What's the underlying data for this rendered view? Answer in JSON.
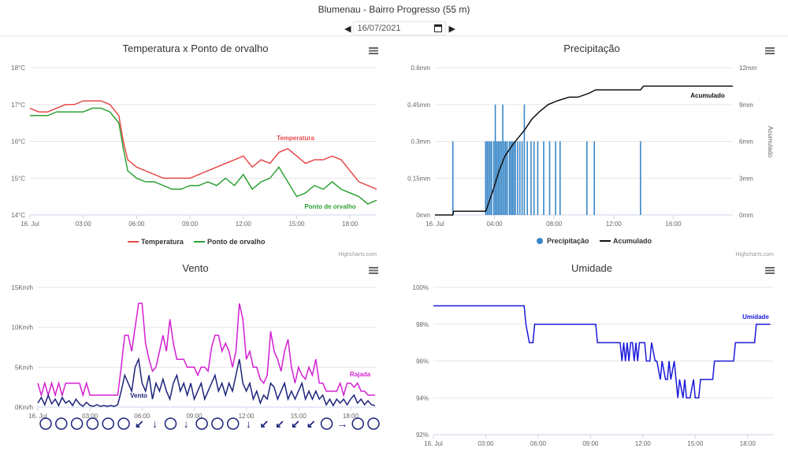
{
  "header": {
    "title": "Blumenau - Bairro Progresso (55 m)",
    "date": "16/07/2021"
  },
  "credits": "Highcharts.com",
  "charts": [
    {
      "type": "line",
      "title": "Temperatura x Ponto de orvalho",
      "xticks": [
        "16. Jul",
        "03:00",
        "06:00",
        "09:00",
        "12:00",
        "15:00",
        "18:00"
      ],
      "yticks": [
        "14°C",
        "15°C",
        "16°C",
        "17°C",
        "18°C"
      ],
      "ylim": [
        14,
        18
      ],
      "xlim": [
        0,
        19.5
      ],
      "legend": [
        "Temperatura",
        "Ponto de orvalho"
      ],
      "series": [
        {
          "name": "Temperatura",
          "color": "#e84a4a",
          "label": "Temperatura",
          "x": [
            0,
            0.5,
            1,
            1.5,
            2,
            2.5,
            3,
            3.5,
            4,
            4.5,
            5,
            5.25,
            5.5,
            6,
            6.5,
            7,
            7.5,
            8,
            8.5,
            9,
            9.5,
            10,
            10.5,
            11,
            11.5,
            12,
            12.5,
            13,
            13.5,
            14,
            14.5,
            15,
            15.5,
            16,
            16.5,
            17,
            17.5,
            18,
            18.5,
            19,
            19.5
          ],
          "y": [
            16.9,
            16.8,
            16.8,
            16.9,
            17.0,
            17.0,
            17.1,
            17.1,
            17.1,
            17.0,
            16.7,
            16.0,
            15.5,
            15.3,
            15.2,
            15.1,
            15.0,
            15.0,
            15.0,
            15.0,
            15.1,
            15.2,
            15.3,
            15.4,
            15.5,
            15.6,
            15.3,
            15.5,
            15.4,
            15.7,
            15.8,
            15.6,
            15.4,
            15.5,
            15.5,
            15.6,
            15.5,
            15.2,
            14.9,
            14.8,
            14.7
          ]
        },
        {
          "name": "Ponto de orvalho",
          "color": "#2fa236",
          "label": "Ponto de orvalho",
          "x": [
            0,
            0.5,
            1,
            1.5,
            2,
            2.5,
            3,
            3.5,
            4,
            4.5,
            5,
            5.25,
            5.5,
            6,
            6.5,
            7,
            7.5,
            8,
            8.5,
            9,
            9.5,
            10,
            10.5,
            11,
            11.5,
            12,
            12.5,
            13,
            13.5,
            14,
            14.5,
            15,
            15.5,
            16,
            16.5,
            17,
            17.5,
            18,
            18.5,
            19,
            19.5
          ],
          "y": [
            16.7,
            16.7,
            16.7,
            16.8,
            16.8,
            16.8,
            16.8,
            16.9,
            16.9,
            16.8,
            16.5,
            15.8,
            15.2,
            15.0,
            14.9,
            14.9,
            14.8,
            14.7,
            14.7,
            14.8,
            14.8,
            14.9,
            14.8,
            15.0,
            14.8,
            15.1,
            14.7,
            14.9,
            15.0,
            15.3,
            14.9,
            14.5,
            14.6,
            14.8,
            14.7,
            14.9,
            14.7,
            14.6,
            14.5,
            14.3,
            14.4
          ]
        }
      ]
    },
    {
      "type": "bar+line",
      "title": "Precipitação",
      "xticks": [
        "16. Jul",
        "04:00",
        "08:00",
        "12:00",
        "16:00"
      ],
      "yticks": [
        "0mm",
        "0.15mm",
        "0.3mm",
        "0.45mm",
        "0.6mm"
      ],
      "y2ticks": [
        "0mm",
        "3mm",
        "6mm",
        "9mm",
        "12mm"
      ],
      "y2label": "Acumulado",
      "ylim": [
        0,
        0.6
      ],
      "y2lim": [
        0,
        12
      ],
      "xlim": [
        0,
        20
      ],
      "legend": [
        "Precipitação",
        "Acumulado"
      ],
      "bars": {
        "name": "Precipitação",
        "color": "#3a87c8",
        "x": [
          1.2,
          3.4,
          3.5,
          3.6,
          3.7,
          3.8,
          3.95,
          4.05,
          4.15,
          4.25,
          4.35,
          4.45,
          4.55,
          4.65,
          4.75,
          4.85,
          5.0,
          5.1,
          5.2,
          5.3,
          5.4,
          5.55,
          5.7,
          5.85,
          6.0,
          6.2,
          6.45,
          6.65,
          6.9,
          7.3,
          7.7,
          8.1,
          8.4,
          10.2,
          10.7,
          13.8
        ],
        "y": [
          0.3,
          0.3,
          0.3,
          0.3,
          0.3,
          0.3,
          0.3,
          0.45,
          0.3,
          0.3,
          0.3,
          0.3,
          0.45,
          0.3,
          0.3,
          0.3,
          0.3,
          0.3,
          0.3,
          0.3,
          0.3,
          0.3,
          0.3,
          0.3,
          0.45,
          0.3,
          0.3,
          0.3,
          0.3,
          0.3,
          0.3,
          0.3,
          0.3,
          0.3,
          0.3,
          0.3
        ]
      },
      "line": {
        "name": "Acumulado",
        "color": "#111",
        "label": "Acumulado",
        "x": [
          0,
          1.2,
          1.25,
          3.4,
          3.5,
          3.9,
          4.3,
          4.7,
          5.2,
          5.6,
          6.0,
          6.5,
          7.0,
          7.6,
          8.2,
          9.0,
          9.6,
          10.3,
          10.8,
          11.5,
          13.0,
          13.8,
          14.0,
          17.0,
          20.0
        ],
        "y": [
          0,
          0,
          0.3,
          0.3,
          0.6,
          2.0,
          3.6,
          4.8,
          5.7,
          6.3,
          6.9,
          7.8,
          8.4,
          9.0,
          9.3,
          9.6,
          9.6,
          9.9,
          10.2,
          10.2,
          10.2,
          10.2,
          10.5,
          10.5,
          10.5
        ]
      }
    },
    {
      "type": "line",
      "title": "Vento",
      "xticks": [
        "16. Jul",
        "03:00",
        "06:00",
        "09:00",
        "12:00",
        "15:00",
        "18:00"
      ],
      "yticks": [
        "0Km/h",
        "5Km/h",
        "10Km/h",
        "15Km/h"
      ],
      "ylim": [
        0,
        15
      ],
      "xlim": [
        0,
        19.5
      ],
      "series": [
        {
          "name": "Rajada",
          "color": "#d21fd2",
          "label": "Rajada",
          "x": [
            0,
            0.2,
            0.4,
            0.6,
            0.8,
            1.0,
            1.2,
            1.4,
            1.6,
            1.8,
            2.0,
            2.2,
            2.4,
            2.6,
            2.8,
            3.0,
            3.2,
            3.4,
            3.6,
            3.8,
            4.0,
            4.2,
            4.4,
            4.6,
            4.8,
            5.0,
            5.2,
            5.4,
            5.6,
            5.8,
            6.0,
            6.2,
            6.4,
            6.6,
            6.8,
            7.0,
            7.2,
            7.4,
            7.6,
            7.8,
            8.0,
            8.2,
            8.4,
            8.6,
            8.8,
            9.0,
            9.2,
            9.4,
            9.6,
            9.8,
            10.0,
            10.2,
            10.4,
            10.6,
            10.8,
            11.0,
            11.2,
            11.4,
            11.6,
            11.8,
            12.0,
            12.2,
            12.4,
            12.6,
            12.8,
            13.0,
            13.2,
            13.4,
            13.6,
            13.8,
            14.0,
            14.2,
            14.4,
            14.6,
            14.8,
            15.0,
            15.2,
            15.4,
            15.6,
            15.8,
            16.0,
            16.2,
            16.4,
            16.6,
            16.8,
            17.0,
            17.2,
            17.4,
            17.6,
            17.8,
            18.0,
            18.2,
            18.4,
            18.6,
            18.8,
            19.0,
            19.2,
            19.4
          ],
          "y": [
            3,
            1.5,
            3,
            1.5,
            3,
            1.5,
            3,
            1.5,
            3,
            3,
            3,
            3,
            3,
            1.5,
            3,
            1.5,
            1.5,
            1.5,
            1.5,
            1.5,
            1.5,
            1.5,
            1.5,
            1.5,
            5,
            9,
            9,
            7,
            10,
            13,
            13,
            8,
            6,
            4.5,
            5,
            7,
            9,
            7,
            11,
            8,
            6,
            6,
            6,
            5,
            5,
            5,
            4,
            5,
            5,
            4.5,
            7.5,
            9,
            9,
            7,
            8,
            7,
            5,
            7,
            13,
            11,
            6,
            7,
            5,
            5,
            3.5,
            3,
            4,
            9.5,
            7,
            6,
            4.5,
            7,
            8.5,
            5,
            3,
            5,
            4,
            3.5,
            5,
            4,
            6,
            3,
            3,
            2,
            2,
            2,
            2,
            3,
            1.5,
            3,
            3,
            2.5,
            3,
            2,
            2,
            1.5,
            1.5,
            1.5
          ]
        },
        {
          "name": "Vento",
          "color": "#1c237a",
          "label": "Vento",
          "x": [
            0,
            0.2,
            0.4,
            0.6,
            0.8,
            1.0,
            1.2,
            1.4,
            1.6,
            1.8,
            2.0,
            2.2,
            2.4,
            2.6,
            2.8,
            3.0,
            3.2,
            3.4,
            3.6,
            3.8,
            4.0,
            4.2,
            4.4,
            4.6,
            4.8,
            5.0,
            5.2,
            5.4,
            5.6,
            5.8,
            6.0,
            6.2,
            6.4,
            6.6,
            6.8,
            7.0,
            7.2,
            7.4,
            7.6,
            7.8,
            8.0,
            8.2,
            8.4,
            8.6,
            8.8,
            9.0,
            9.2,
            9.4,
            9.6,
            9.8,
            10.0,
            10.2,
            10.4,
            10.6,
            10.8,
            11.0,
            11.2,
            11.4,
            11.6,
            11.8,
            12.0,
            12.2,
            12.4,
            12.6,
            12.8,
            13.0,
            13.2,
            13.4,
            13.6,
            13.8,
            14.0,
            14.2,
            14.4,
            14.6,
            14.8,
            15.0,
            15.2,
            15.4,
            15.6,
            15.8,
            16.0,
            16.2,
            16.4,
            16.6,
            16.8,
            17.0,
            17.2,
            17.4,
            17.6,
            17.8,
            18.0,
            18.2,
            18.4,
            18.6,
            18.8,
            19.0,
            19.2,
            19.4
          ],
          "y": [
            0.5,
            1.2,
            0.3,
            1.5,
            0.4,
            1,
            0.2,
            1.2,
            0.5,
            0.8,
            0.2,
            1,
            0.4,
            0.1,
            0.6,
            0.2,
            0.1,
            0.3,
            0.1,
            0.2,
            0.1,
            0.2,
            0.1,
            0.3,
            2,
            4,
            3,
            2,
            5,
            6,
            3,
            2,
            4,
            1,
            3,
            2,
            3.5,
            2,
            1,
            3,
            4,
            2,
            3,
            1.5,
            3,
            1,
            2,
            3,
            1,
            2,
            3,
            4,
            2,
            3,
            1.5,
            3,
            2,
            4,
            6,
            3,
            2,
            3,
            1,
            2,
            0.5,
            1.5,
            1,
            3,
            2.5,
            1,
            2,
            3,
            1,
            2,
            1,
            2,
            3,
            1,
            2,
            1,
            2,
            1,
            1.5,
            0.3,
            1,
            0.2,
            1,
            0.5,
            1,
            0.3,
            1,
            1.5,
            0.5,
            1,
            0.3,
            0.8,
            0.3,
            0.2
          ]
        }
      ],
      "directions": [
        "calm",
        "calm",
        "calm",
        "calm",
        "calm",
        "calm",
        "↙",
        "↓",
        "calm",
        "↓",
        "calm",
        "calm",
        "calm",
        "↓",
        "↙",
        "↙",
        "↙",
        "↙",
        "calm",
        "→",
        "calm",
        "calm"
      ]
    },
    {
      "type": "line",
      "title": "Umidade",
      "xticks": [
        "16. Jul",
        "03:00",
        "06:00",
        "09:00",
        "12:00",
        "15:00",
        "18:00"
      ],
      "yticks": [
        "92%",
        "94%",
        "96%",
        "98%",
        "100%"
      ],
      "ylim": [
        92,
        100
      ],
      "xlim": [
        0,
        19.5
      ],
      "series": [
        {
          "name": "Umidade",
          "color": "#1a1adb",
          "label": "Umidade",
          "x": [
            0,
            5.2,
            5.3,
            5.5,
            5.6,
            5.7,
            5.8,
            6.0,
            9.3,
            9.4,
            9.5,
            10.7,
            10.8,
            10.9,
            11.0,
            11.1,
            11.2,
            11.3,
            11.4,
            11.5,
            11.6,
            11.7,
            11.8,
            11.9,
            12.1,
            12.2,
            12.4,
            12.5,
            12.7,
            12.8,
            13.0,
            13.1,
            13.3,
            13.4,
            13.5,
            13.6,
            13.8,
            13.9,
            14.0,
            14.1,
            14.3,
            14.4,
            14.5,
            14.6,
            14.7,
            14.9,
            15.0,
            15.1,
            15.2,
            15.3,
            15.5,
            15.6,
            16.0,
            16.1,
            16.2,
            16.5,
            16.6,
            17.2,
            17.3,
            17.7,
            17.8,
            18.4,
            18.5,
            18.9,
            19.0,
            19.3
          ],
          "y": [
            99,
            99,
            98,
            97,
            97,
            97,
            98,
            98,
            98,
            97,
            97,
            97,
            96,
            97,
            96,
            97,
            96,
            97,
            97,
            96,
            97,
            96,
            97,
            97,
            97,
            96,
            96,
            97,
            96,
            96,
            95,
            96,
            95,
            95,
            96,
            95,
            96,
            95,
            94,
            95,
            94,
            95,
            94,
            94,
            94,
            95,
            94,
            94,
            94,
            95,
            95,
            95,
            95,
            96,
            96,
            96,
            96,
            96,
            97,
            97,
            97,
            97,
            98,
            98,
            98,
            98
          ]
        }
      ]
    }
  ]
}
